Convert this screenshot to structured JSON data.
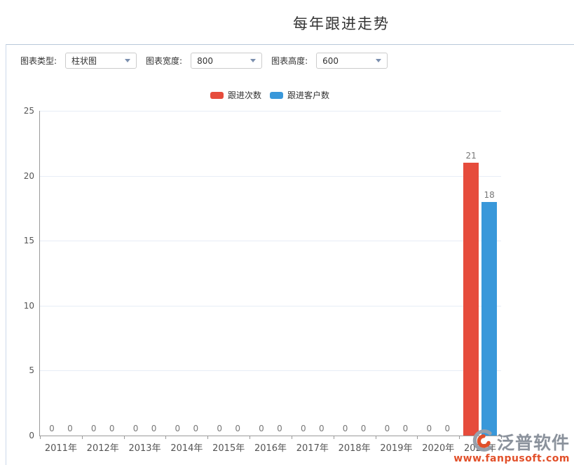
{
  "page_title": "每年跟进走势",
  "controls": {
    "chart_type": {
      "label": "图表类型:",
      "value": "柱状图"
    },
    "chart_width": {
      "label": "图表宽度:",
      "value": "800"
    },
    "chart_height": {
      "label": "图表高度:",
      "value": "600"
    }
  },
  "legend": [
    {
      "label": "跟进次数",
      "color": "#e64c3c"
    },
    {
      "label": "跟进客户数",
      "color": "#3998da"
    }
  ],
  "chart_data": {
    "type": "bar",
    "title": "每年跟进走势",
    "categories": [
      "2011年",
      "2012年",
      "2013年",
      "2014年",
      "2015年",
      "2016年",
      "2017年",
      "2018年",
      "2019年",
      "2020年",
      "2021年"
    ],
    "series": [
      {
        "name": "跟进次数",
        "color": "#e64c3c",
        "values": [
          0,
          0,
          0,
          0,
          0,
          0,
          0,
          0,
          0,
          0,
          21
        ]
      },
      {
        "name": "跟进客户数",
        "color": "#3998da",
        "values": [
          0,
          0,
          0,
          0,
          0,
          0,
          0,
          0,
          0,
          0,
          18
        ]
      }
    ],
    "ylim": [
      0,
      25
    ],
    "yticks": [
      0,
      5,
      10,
      15,
      20,
      25
    ],
    "grid": true,
    "legend_position": "top",
    "value_labels": true
  },
  "watermark": {
    "name": "泛普软件",
    "url": "www.fanpusoft.com"
  }
}
